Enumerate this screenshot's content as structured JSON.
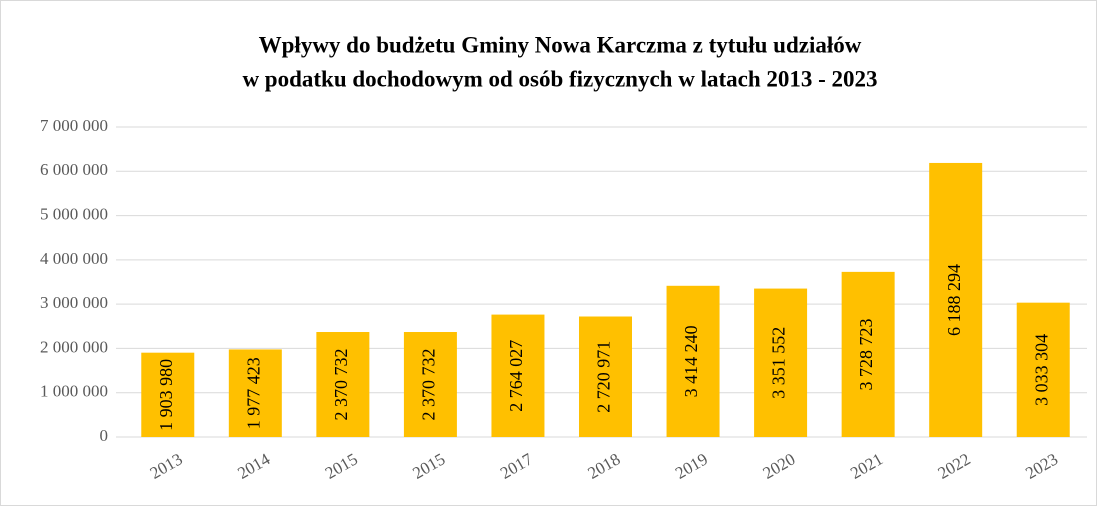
{
  "chart_data": {
    "type": "bar",
    "title": [
      "Wpływy do budżetu Gminy Nowa Karczma z tytułu udziałów",
      "w podatku dochodowym od osób fizycznych w latach 2013 - 2023"
    ],
    "categories": [
      "2013",
      "2014",
      "2015",
      "2015",
      "2017",
      "2018",
      "2019",
      "2020",
      "2021",
      "2022",
      "2023"
    ],
    "values": [
      1903980,
      1977423,
      2370732,
      2370732,
      2764027,
      2720971,
      3414240,
      3351552,
      3728723,
      6188294,
      3033304
    ],
    "value_labels": [
      "1 903 980",
      "1 977 423",
      "2 370 732",
      "2 370 732",
      "2 764 027",
      "2 720 971",
      "3 414 240",
      "3 351 552",
      "3 728 723",
      "6 188 294",
      "3 033 304"
    ],
    "color": "#ffc000",
    "ylim": [
      0,
      7000000
    ],
    "yticks": [
      0,
      {
        "value": 1000000,
        "label": "1 000 000"
      },
      {
        "value": 2000000,
        "label": "2 000 000"
      },
      {
        "value": 3000000,
        "label": "3 000 000"
      },
      {
        "value": 4000000,
        "label": "4 000 000"
      },
      {
        "value": 5000000,
        "label": "5 000 000"
      },
      {
        "value": 6000000,
        "label": "6 000 000"
      },
      {
        "value": 7000000,
        "label": "7 000 000"
      }
    ],
    "grid": true
  }
}
